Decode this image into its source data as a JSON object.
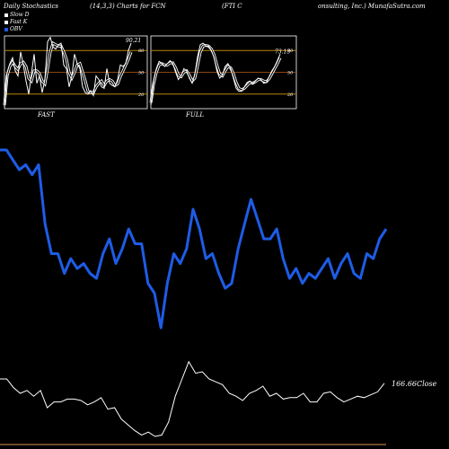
{
  "header": {
    "left": "Daily Stochastics",
    "middle": "(14,3,3) Charts for FCN",
    "company_a": "(FTI C",
    "company_b": "onsulting, Inc.) MunafaSutra.com"
  },
  "legend": [
    {
      "label": "Slow  D",
      "color": "#ffffff"
    },
    {
      "label": "Fast K",
      "color": "#ffffff"
    },
    {
      "label": "OBV",
      "color": "#1e5ce6"
    }
  ],
  "colors": {
    "obv": "#1e5ce6",
    "close": "#ffffff",
    "band": "#b8860b",
    "mid": "#8b4513"
  },
  "chart_data": [
    {
      "type": "line",
      "panel": "FAST",
      "title": "FAST",
      "last_value_label": "90.21",
      "ylim": [
        0,
        100
      ],
      "levels": [
        80,
        50,
        20
      ],
      "level_labels": [
        "80",
        "50",
        "20"
      ],
      "series": [
        {
          "name": "Fast K",
          "values": [
            2,
            50,
            62,
            70,
            52,
            45,
            78,
            60,
            38,
            20,
            48,
            75,
            35,
            45,
            22,
            40,
            92,
            98,
            85,
            82,
            88,
            90,
            60,
            55,
            30,
            45,
            75,
            62,
            55,
            30,
            22,
            20,
            25,
            18,
            45,
            40,
            30,
            28,
            55,
            35,
            32,
            30,
            40,
            60,
            58,
            62,
            80,
            90
          ]
        },
        {
          "name": "Slow  D",
          "values": [
            5,
            45,
            58,
            64,
            58,
            54,
            62,
            64,
            58,
            42,
            38,
            52,
            52,
            48,
            38,
            34,
            55,
            78,
            90,
            88,
            86,
            86,
            78,
            68,
            50,
            42,
            50,
            60,
            62,
            50,
            38,
            24,
            22,
            22,
            30,
            35,
            38,
            32,
            38,
            40,
            38,
            32,
            34,
            44,
            52,
            60,
            68,
            78
          ]
        }
      ]
    },
    {
      "type": "line",
      "panel": "FULL",
      "title": "FULL",
      "last_value_label": "73.13",
      "ylim": [
        0,
        100
      ],
      "levels": [
        80,
        50,
        20
      ],
      "level_labels": [
        "80",
        "50",
        "20"
      ],
      "series": [
        {
          "name": "Fast K",
          "values": [
            5,
            38,
            55,
            65,
            62,
            58,
            62,
            66,
            62,
            50,
            40,
            45,
            55,
            52,
            42,
            35,
            48,
            72,
            88,
            90,
            86,
            86,
            80,
            70,
            52,
            42,
            46,
            58,
            62,
            55,
            42,
            28,
            24,
            24,
            30,
            36,
            38,
            34,
            38,
            42,
            40,
            35,
            36,
            44,
            52,
            58,
            66,
            75
          ]
        },
        {
          "name": "Slow  D",
          "values": [
            8,
            34,
            50,
            60,
            62,
            60,
            60,
            63,
            63,
            56,
            46,
            44,
            50,
            52,
            46,
            38,
            42,
            60,
            78,
            86,
            87,
            86,
            82,
            74,
            60,
            48,
            45,
            52,
            58,
            56,
            48,
            36,
            28,
            26,
            28,
            32,
            36,
            35,
            37,
            40,
            40,
            38,
            37,
            41,
            48,
            55,
            62,
            70
          ]
        }
      ]
    },
    {
      "type": "line",
      "panel": "price",
      "close_label": "166.66Close",
      "series": [
        {
          "name": "OBV",
          "values": [
            92,
            92,
            88,
            84,
            86,
            82,
            86,
            62,
            50,
            50,
            42,
            48,
            44,
            46,
            42,
            40,
            50,
            56,
            46,
            52,
            60,
            54,
            54,
            38,
            34,
            20,
            38,
            50,
            46,
            52,
            68,
            60,
            48,
            50,
            42,
            36,
            38,
            52,
            62,
            72,
            64,
            56,
            56,
            60,
            48,
            40,
            44,
            38,
            42,
            40,
            44,
            48,
            40,
            46,
            50,
            42,
            40,
            50,
            48,
            56,
            60
          ]
        },
        {
          "name": "Close",
          "values": [
            40,
            40,
            34,
            30,
            32,
            28,
            32,
            20,
            24,
            24,
            26,
            26,
            25,
            22,
            24,
            27,
            19,
            20,
            12,
            8,
            4,
            1,
            3,
            0,
            1,
            10,
            28,
            40,
            52,
            44,
            45,
            40,
            38,
            36,
            30,
            28,
            25,
            30,
            32,
            35,
            28,
            30,
            26,
            27,
            27,
            30,
            24,
            24,
            30,
            31,
            27,
            24,
            26,
            28,
            27,
            29,
            31,
            37
          ]
        }
      ]
    }
  ]
}
